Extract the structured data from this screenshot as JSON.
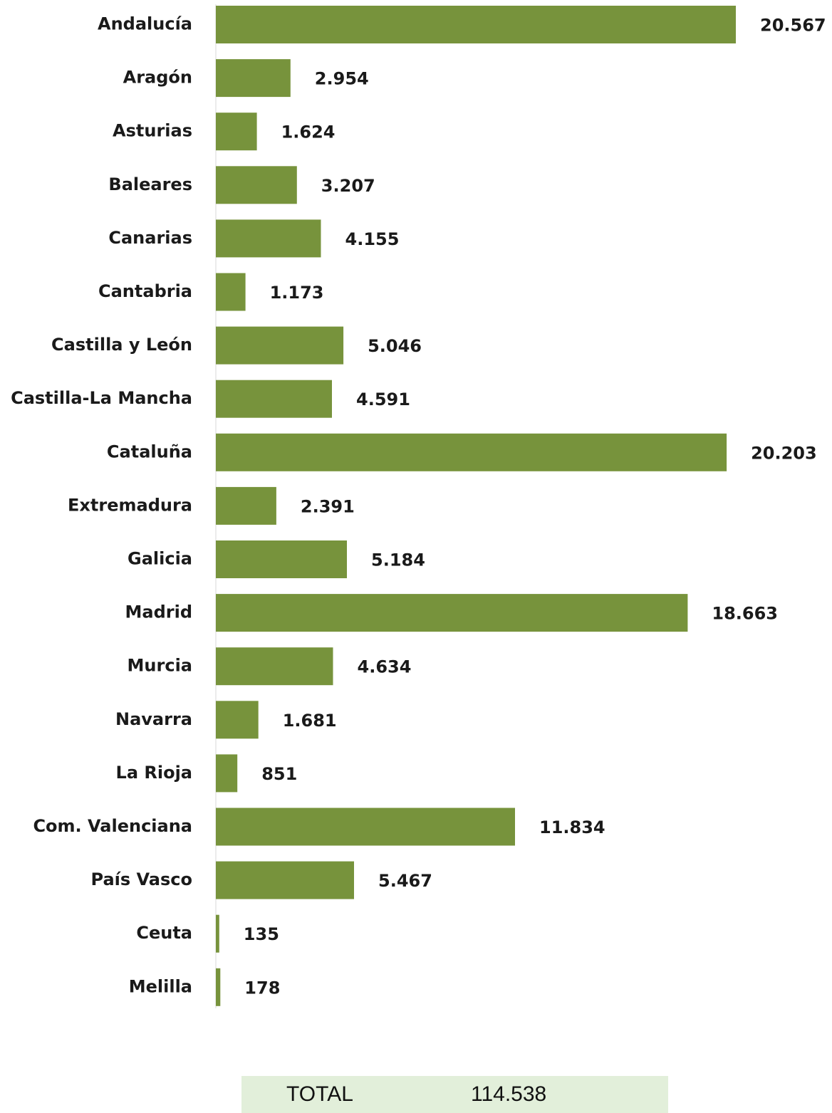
{
  "chart_data": {
    "type": "bar",
    "orientation": "horizontal",
    "categories": [
      "Andalucía",
      "Aragón",
      "Asturias",
      "Baleares",
      "Canarias",
      "Cantabria",
      "Castilla y León",
      "Castilla-La Mancha",
      "Cataluña",
      "Extremadura",
      "Galicia",
      "Madrid",
      "Murcia",
      "Navarra",
      "La Rioja",
      "Com. Valenciana",
      "País Vasco",
      "Ceuta",
      "Melilla"
    ],
    "values": [
      20567,
      2954,
      1624,
      3207,
      4155,
      1173,
      5046,
      4591,
      20203,
      2391,
      5184,
      18663,
      4634,
      1681,
      851,
      11834,
      5467,
      135,
      178
    ],
    "value_labels": [
      "20.567",
      "2.954",
      "1.624",
      "3.207",
      "4.155",
      "1.173",
      "5.046",
      "4.591",
      "20.203",
      "2.391",
      "5.184",
      "18.663",
      "4.634",
      "1.681",
      "851",
      "11.834",
      "5.467",
      "135",
      "178"
    ],
    "title": "",
    "xlabel": "",
    "ylabel": "",
    "xlim": [
      0,
      20567
    ],
    "grid": false,
    "legend": "none",
    "bar_color": "#77933c"
  },
  "total": {
    "label": "TOTAL",
    "value": "114.538",
    "background": "#e2efda"
  }
}
